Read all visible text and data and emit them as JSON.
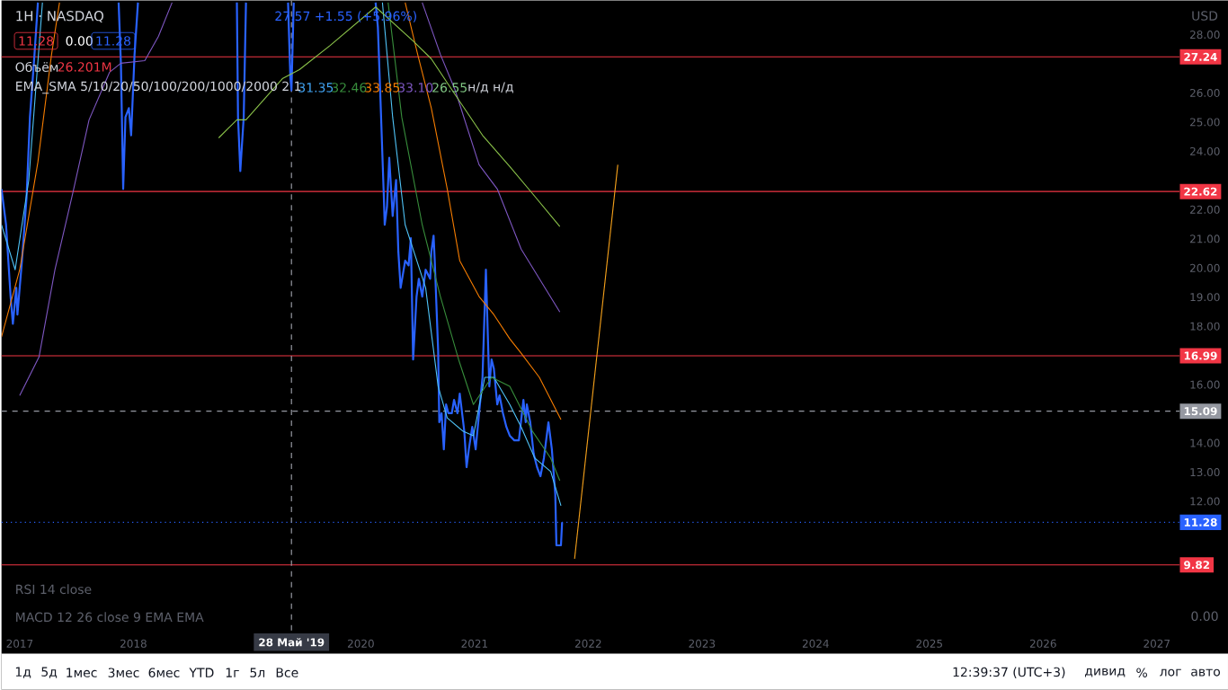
{
  "chart_data": {
    "type": "line",
    "title": "1H · NASDAQ",
    "xlim": [
      2016.84,
      2027.2
    ],
    "ylim": [
      7.48,
      29.17
    ],
    "xticks": [
      2017,
      2018,
      2020,
      2021,
      2022,
      2023,
      2024,
      2025,
      2026,
      2027
    ],
    "yticks": [
      {
        "value": 12,
        "label": "12.00"
      },
      {
        "value": 13,
        "label": "13.00"
      },
      {
        "value": 14,
        "label": "14.00"
      },
      {
        "value": 16,
        "label": "16.00"
      },
      {
        "value": 18,
        "label": "18.00"
      },
      {
        "value": 19,
        "label": "19.00"
      },
      {
        "value": 20,
        "label": "20.00"
      },
      {
        "value": 21,
        "label": "21.00"
      },
      {
        "value": 22,
        "label": "22.00"
      },
      {
        "value": 24,
        "label": "24.00"
      },
      {
        "value": 25,
        "label": "25.00"
      },
      {
        "value": 26,
        "label": "26.00"
      },
      {
        "value": 28,
        "label": "28.00"
      }
    ],
    "marker": "none",
    "line_style": "solid",
    "series": [
      {
        "color": "#2962ff",
        "x": [
          2016.84,
          2016.88,
          2016.92,
          2016.94,
          2016.97,
          2016.98,
          2017.02,
          2017.06,
          2017.09,
          2017.13,
          2017.16,
          2017.5,
          2017.87,
          2017.89,
          2017.91,
          2017.93,
          2017.96,
          2017.98,
          2018.01,
          2018.04,
          2018.5,
          2018.91,
          2018.92,
          2018.94,
          2018.97,
          2018.99,
          2019.2,
          2019.36,
          2019.38,
          2019.39,
          2019.41,
          2019.8,
          2020.13,
          2020.15,
          2020.17,
          2020.2,
          2020.21,
          2020.23,
          2020.25,
          2020.28,
          2020.31,
          2020.33,
          2020.35,
          2020.39,
          2020.42,
          2020.44,
          2020.46,
          2020.49,
          2020.51,
          2020.54,
          2020.57,
          2020.61,
          2020.62,
          2020.64,
          2020.65,
          2020.68,
          2020.69,
          2020.71,
          2020.73,
          2020.75,
          2020.77,
          2020.8,
          2020.82,
          2020.85,
          2020.87,
          2020.91,
          2020.93,
          2020.95,
          2020.98,
          2021.01,
          2021.04,
          2021.07,
          2021.1,
          2021.13,
          2021.15,
          2021.17,
          2021.2,
          2021.22,
          2021.25,
          2021.28,
          2021.31,
          2021.35,
          2021.39,
          2021.43,
          2021.45,
          2021.46,
          2021.49,
          2021.52,
          2021.55,
          2021.58,
          2021.61,
          2021.65,
          2021.68,
          2021.71,
          2021.72,
          2021.76,
          2021.77
        ],
        "values": [
          22.71,
          21.48,
          19.02,
          18.09,
          19.32,
          18.4,
          20.25,
          22.4,
          25.17,
          27.32,
          29.1,
          null,
          29.1,
          27.02,
          22.71,
          25.17,
          25.48,
          24.55,
          27.32,
          29.1,
          null,
          29.1,
          25.17,
          23.32,
          25.17,
          29.1,
          null,
          29.1,
          26.55,
          26.09,
          29.1,
          null,
          29.1,
          28.25,
          26.09,
          22.71,
          21.48,
          22.09,
          23.78,
          21.78,
          23.02,
          20.55,
          19.32,
          20.25,
          20.09,
          21.02,
          16.86,
          19.02,
          19.63,
          19.02,
          19.94,
          19.63,
          20.55,
          21.11,
          20.25,
          17.17,
          14.71,
          15.02,
          13.78,
          15.32,
          15.02,
          15.02,
          15.48,
          15.02,
          15.69,
          14.4,
          13.17,
          13.78,
          14.55,
          13.78,
          15.02,
          16.25,
          19.94,
          15.94,
          16.86,
          16.55,
          15.32,
          15.63,
          15.02,
          14.55,
          14.25,
          14.09,
          14.09,
          15.48,
          14.71,
          15.32,
          14.71,
          13.63,
          13.17,
          12.86,
          13.48,
          14.71,
          13.78,
          12.25,
          10.49,
          10.49,
          11.28
        ]
      },
      {
        "color": "#4fc3f7",
        "x": [
          2016.84,
          2016.96,
          2017.08,
          2017.2,
          2018.5,
          2020.19,
          2020.28,
          2020.39,
          2020.57,
          2020.68,
          2020.76,
          2020.9,
          2020.99,
          2021.09,
          2021.17,
          2021.31,
          2021.41,
          2021.53,
          2021.67,
          2021.76
        ],
        "values": [
          21.48,
          19.94,
          23.02,
          29.1,
          null,
          29.1,
          25.17,
          21.48,
          19.32,
          15.94,
          14.86,
          14.4,
          14.25,
          16.25,
          16.25,
          15.32,
          14.55,
          13.48,
          13.02,
          11.85
        ]
      },
      {
        "color": "#388e3c",
        "x": [
          2020.24,
          2020.36,
          2020.54,
          2020.7,
          2020.86,
          2020.99,
          2021.15,
          2021.31,
          2021.51,
          2021.67,
          2021.75
        ],
        "values": [
          29.1,
          25.17,
          21.48,
          19.02,
          16.86,
          15.32,
          16.25,
          15.94,
          14.4,
          13.48,
          12.71
        ]
      },
      {
        "color": "#f57c00",
        "x": [
          2016.84,
          2017.0,
          2017.16,
          2017.28,
          2017.35,
          2018.5,
          2020.39,
          2020.5,
          2020.62,
          2020.76,
          2020.87,
          2021.04,
          2021.17,
          2021.31,
          2021.41,
          2021.57,
          2021.76
        ],
        "values": [
          17.63,
          19.94,
          23.63,
          27.32,
          29.1,
          null,
          29.1,
          27.32,
          25.48,
          22.71,
          20.25,
          19.02,
          18.4,
          17.57,
          17.08,
          16.25,
          14.8
        ]
      },
      {
        "color": "#7e57c2",
        "x": [
          2017.0,
          2017.17,
          2017.31,
          2017.47,
          2017.61,
          2017.79,
          2017.89,
          2018.1,
          2018.22,
          2018.34,
          2019.0,
          2020.54,
          2020.7,
          2020.83,
          2021.04,
          2021.2,
          2021.41,
          2021.75
        ],
        "values": [
          15.63,
          16.95,
          19.94,
          22.62,
          25.08,
          26.71,
          27.02,
          27.11,
          27.94,
          29.1,
          null,
          29.1,
          27.32,
          26.09,
          23.54,
          22.71,
          20.65,
          18.49
        ]
      },
      {
        "color": "#8bc34a",
        "x": [
          2018.75,
          2018.91,
          2018.99,
          2019.31,
          2019.46,
          2019.73,
          2020.13,
          2020.46,
          2020.62,
          2020.83,
          2021.07,
          2021.31,
          2021.51,
          2021.75
        ],
        "values": [
          24.46,
          25.08,
          25.08,
          26.49,
          26.8,
          27.63,
          28.95,
          27.78,
          27.17,
          25.94,
          24.55,
          23.48,
          22.55,
          21.42
        ]
      },
      {
        "color": "#f7a21b",
        "x": [
          2021.88,
          2022.26
        ],
        "values": [
          10.03,
          23.54
        ]
      }
    ],
    "ref_lines": [
      {
        "axis": "y",
        "value": 27.24,
        "label": "27.24",
        "color": "#f23645",
        "line_style": "solid"
      },
      {
        "axis": "y",
        "value": 22.62,
        "label": "22.62",
        "color": "#f23645",
        "line_style": "solid"
      },
      {
        "axis": "y",
        "value": 16.99,
        "label": "16.99",
        "color": "#f23645",
        "line_style": "solid"
      },
      {
        "axis": "y",
        "value": 9.82,
        "label": "9.82",
        "color": "#f23645",
        "line_style": "solid"
      },
      {
        "axis": "y",
        "value": 15.09,
        "label": "15.09",
        "color": "#9598a1",
        "line_style": "dashed"
      },
      {
        "axis": "y",
        "value": 11.28,
        "label": "11.28",
        "color": "#2962ff",
        "line_style": "dotted"
      },
      {
        "axis": "x",
        "value": 2019.39,
        "label": "28 Май '19",
        "color": "#9598a1",
        "line_style": "dashed"
      }
    ],
    "annotations": [
      "27.57 +1.55 (+5.96%)",
      "11.28",
      "0.00",
      "11.28",
      "Объём",
      "26.201M",
      "EMA_SMA 5/10/20/50/100/200/1000/2000 2 1",
      "31.35",
      "32.46",
      "33.85",
      "33.10",
      "26.55",
      "н/д н/д",
      "RSI 14 close",
      "MACD 12 26 close 9 EMA EMA",
      "0.00",
      "USD",
      "1д",
      "5д",
      "1мес",
      "3мес",
      "6мес",
      "YTD",
      "1г",
      "5л",
      "Все",
      "12:39:37 (UTC+3)",
      "дивид",
      "%",
      "лог",
      "авто"
    ]
  }
}
